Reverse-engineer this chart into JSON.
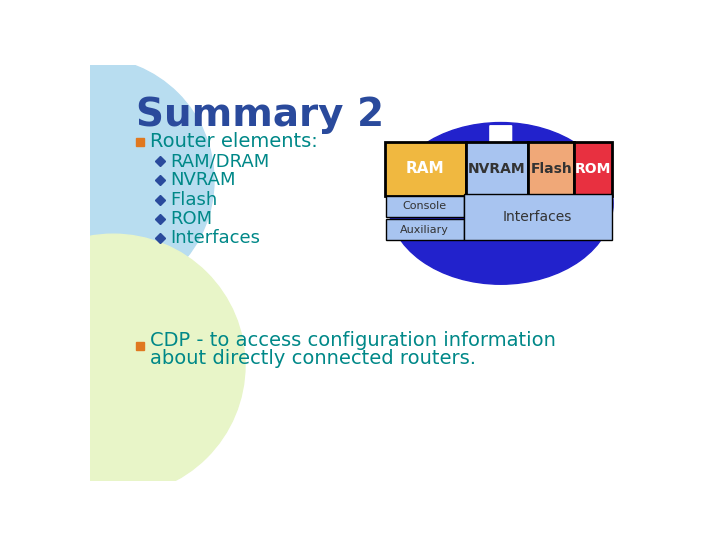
{
  "title": "Summary 2",
  "title_color": "#2a4a9c",
  "title_fontsize": 28,
  "bg_color": "#ffffff",
  "left_circle_color": "#b8ddf0",
  "left_bottom_color": "#e8f5c8",
  "bullet1_text": "Router elements:",
  "bullet1_color": "#008888",
  "bullet1_fontsize": 14,
  "bullet_marker_color": "#e07820",
  "sub_bullet_color": "#008888",
  "sub_bullet_fontsize": 13,
  "sub_bullets": [
    "RAM/DRAM",
    "NVRAM",
    "Flash",
    "ROM",
    "Interfaces"
  ],
  "sub_bullet_marker_color": "#2a4a9c",
  "bullet2_line1": "CDP - to access configuration information",
  "bullet2_line2": "about directly connected routers.",
  "bullet2_color": "#008888",
  "bullet2_fontsize": 14,
  "ellipse_color": "#2222cc",
  "ram_color": "#f0b840",
  "nvram_color": "#a8c4f0",
  "flash_color": "#f0a878",
  "rom_color": "#e83040",
  "console_color": "#a8c4f0",
  "interfaces_color": "#a8c4f0",
  "box_label_color_white": "#ffffff",
  "box_label_color_dark": "#333333",
  "arrow_color": "#ffffff"
}
